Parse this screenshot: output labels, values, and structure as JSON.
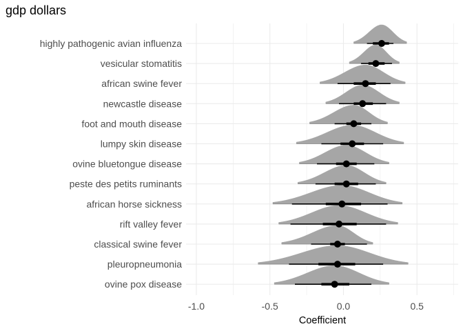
{
  "chart_data": {
    "type": "halfeye",
    "title": "gdp dollars",
    "xlabel": "Coefficient",
    "ylabel": "",
    "xlim": [
      -1.07,
      0.78
    ],
    "xticks": [
      -1.0,
      -0.5,
      0.0,
      0.5
    ],
    "x_tick_labels": [
      "-1.0",
      "-0.5",
      "0.0",
      "0.5"
    ],
    "grid": true,
    "legend": "none",
    "colors": {
      "density": "#a6a6a6",
      "interval": "#000000",
      "grid": "#ebebeb"
    },
    "categories": [
      "highly pathogenic avian influenza",
      "vesicular stomatitis",
      "african swine fever",
      "newcastle disease",
      "foot and mouth disease",
      "lumpy skin disease",
      "ovine bluetongue disease",
      "peste des petits ruminants",
      "african horse sickness",
      "rift valley fever",
      "classical swine fever",
      "pleuropneumonia",
      "ovine pox disease"
    ],
    "estimates": [
      {
        "point": 0.26,
        "inner": [
          0.2,
          0.31
        ],
        "outer": [
          0.16,
          0.34
        ],
        "range": [
          0.07,
          0.43
        ]
      },
      {
        "point": 0.22,
        "inner": [
          0.17,
          0.28
        ],
        "outer": [
          0.12,
          0.33
        ],
        "range": [
          0.04,
          0.38
        ]
      },
      {
        "point": 0.15,
        "inner": [
          0.07,
          0.22
        ],
        "outer": [
          -0.04,
          0.32
        ],
        "range": [
          -0.16,
          0.42
        ]
      },
      {
        "point": 0.13,
        "inner": [
          0.07,
          0.2
        ],
        "outer": [
          -0.03,
          0.29
        ],
        "range": [
          -0.12,
          0.38
        ]
      },
      {
        "point": 0.07,
        "inner": [
          0.02,
          0.12
        ],
        "outer": [
          -0.06,
          0.19
        ],
        "range": [
          -0.23,
          0.3
        ]
      },
      {
        "point": 0.06,
        "inner": [
          -0.02,
          0.14
        ],
        "outer": [
          -0.15,
          0.27
        ],
        "range": [
          -0.32,
          0.41
        ]
      },
      {
        "point": 0.02,
        "inner": [
          -0.05,
          0.09
        ],
        "outer": [
          -0.18,
          0.21
        ],
        "range": [
          -0.3,
          0.31
        ]
      },
      {
        "point": 0.02,
        "inner": [
          -0.06,
          0.1
        ],
        "outer": [
          -0.19,
          0.22
        ],
        "range": [
          -0.31,
          0.29
        ]
      },
      {
        "point": -0.01,
        "inner": [
          -0.12,
          0.12
        ],
        "outer": [
          -0.35,
          0.3
        ],
        "range": [
          -0.48,
          0.4
        ]
      },
      {
        "point": -0.03,
        "inner": [
          -0.14,
          0.09
        ],
        "outer": [
          -0.36,
          0.29
        ],
        "range": [
          -0.44,
          0.37
        ]
      },
      {
        "point": -0.04,
        "inner": [
          -0.09,
          0.01
        ],
        "outer": [
          -0.22,
          0.16
        ],
        "range": [
          -0.42,
          0.2
        ]
      },
      {
        "point": -0.04,
        "inner": [
          -0.17,
          0.08
        ],
        "outer": [
          -0.37,
          0.27
        ],
        "range": [
          -0.58,
          0.44
        ]
      },
      {
        "point": -0.06,
        "inner": [
          -0.15,
          0.04
        ],
        "outer": [
          -0.33,
          0.19
        ],
        "range": [
          -0.47,
          0.31
        ]
      }
    ]
  }
}
